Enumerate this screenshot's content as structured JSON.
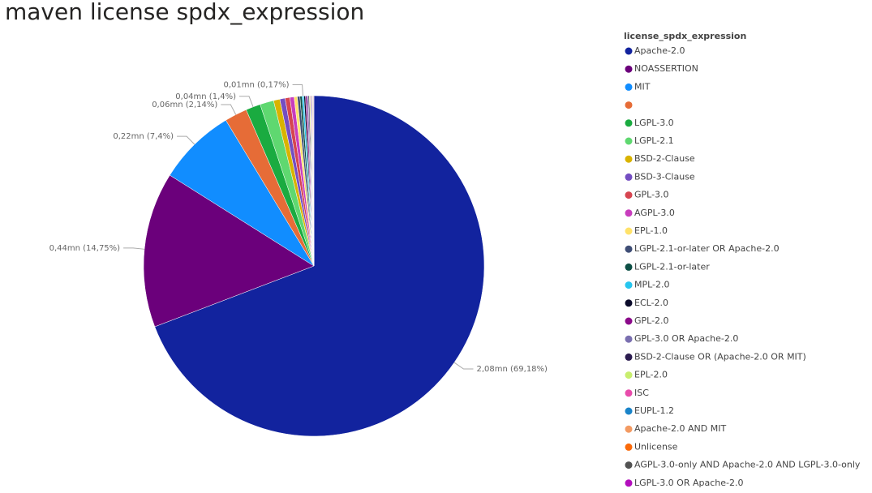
{
  "chart_data": {
    "type": "pie",
    "title": "maven license spdx_expression",
    "legend_title": "license_spdx_expression",
    "categories": [
      "Apache-2.0",
      "NOASSERTION",
      "MIT",
      null,
      "LGPL-3.0",
      "LGPL-2.1",
      "BSD-2-Clause",
      "BSD-3-Clause",
      "GPL-3.0",
      "AGPL-3.0",
      "EPL-1.0",
      "LGPL-2.1-or-later OR Apache-2.0",
      "LGPL-2.1-or-later",
      "MPL-2.0",
      "ECL-2.0",
      "GPL-2.0",
      "GPL-3.0 OR Apache-2.0",
      "BSD-2-Clause OR (Apache-2.0 OR MIT)",
      "EPL-2.0",
      "ISC",
      "EUPL-1.2",
      "Apache-2.0 AND MIT",
      "Unlicense",
      "AGPL-3.0-only AND Apache-2.0 AND LGPL-3.0-only",
      "LGPL-3.0 OR Apache-2.0"
    ],
    "values": [
      69.18,
      14.75,
      7.4,
      2.14,
      1.4,
      1.3,
      0.6,
      0.5,
      0.45,
      0.4,
      0.3,
      0.25,
      0.2,
      0.17,
      0.15,
      0.14,
      0.12,
      0.1,
      0.09,
      0.08,
      0.07,
      0.06,
      0.05,
      0.04,
      0.04
    ],
    "value_labels": [
      "2,08mn (69,18%)",
      "0,44mn (14,75%)",
      "0,22mn (7,4%)",
      "0,06mn (2,14%)",
      "0,04mn (1,4%)",
      null,
      null,
      null,
      null,
      null,
      null,
      null,
      null,
      "0,01mn (0,17%)",
      null,
      null,
      null,
      null,
      null,
      null,
      null,
      null,
      null,
      null,
      null
    ],
    "colors": [
      "#12239e",
      "#6b007b",
      "#118dff",
      "#e66c37",
      "#1aab40",
      "#5fd870",
      "#d9b300",
      "#744ec2",
      "#d64550",
      "#c83dbd",
      "#ffe26a",
      "#3f4e76",
      "#0d4f45",
      "#26c6ef",
      "#0a0a2a",
      "#8b0a8a",
      "#7a6fb0",
      "#2b1c4f",
      "#c8ee6e",
      "#e84cab",
      "#1a84c9",
      "#f39a62",
      "#fa6a0a",
      "#525252",
      "#b30fbd"
    ]
  }
}
